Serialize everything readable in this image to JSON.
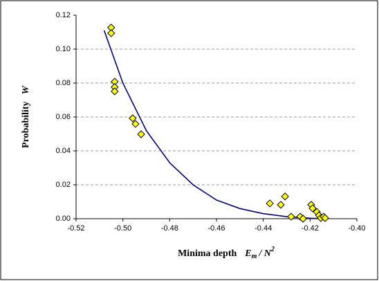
{
  "chart_data": {
    "type": "scatter",
    "ylabel": {
      "text": "Probability",
      "symbol": "W"
    },
    "xlabel": {
      "text": "Minima depth",
      "symbol": "E",
      "subscript": "m",
      "divider": "/ N",
      "superscript": "2"
    },
    "xlim": [
      -0.52,
      -0.4
    ],
    "xticks": [
      -0.52,
      {
        "value": -0.5,
        "label": "-0.50"
      },
      -0.48,
      -0.46,
      -0.44,
      -0.42,
      {
        "value": -0.4,
        "label": "-0.40"
      }
    ],
    "ylim": [
      0,
      0.12
    ],
    "yticks": [
      {
        "value": 0,
        "label": "0.00"
      },
      0.02,
      0.04,
      0.06,
      0.08,
      {
        "value": 0.1,
        "label": "0.10"
      },
      0.12
    ],
    "grid": true,
    "series": [
      {
        "mode": "markers",
        "color": "#ffff00",
        "x": [
          -0.505,
          -0.505,
          -0.5035,
          -0.5035,
          -0.5035,
          -0.4958,
          -0.4946,
          -0.4922,
          -0.4372,
          -0.4325,
          -0.4307,
          -0.4281,
          -0.4242,
          -0.423,
          -0.4195,
          -0.4189,
          -0.4171,
          -0.4162,
          -0.4154,
          -0.4142,
          -0.4136
        ],
        "values": [
          0.1127,
          0.1094,
          0.0808,
          0.0776,
          0.0751,
          0.0592,
          0.0559,
          0.0498,
          0.009,
          0.0082,
          0.0131,
          0.0012,
          0.0012,
          0.0,
          0.0082,
          0.0061,
          0.004,
          0.002,
          0.0004,
          0.0012,
          0.0004
        ]
      },
      {
        "mode": "line",
        "color": "#000080",
        "x": [
          -0.508,
          -0.5,
          -0.49,
          -0.48,
          -0.47,
          -0.46,
          -0.45,
          -0.44,
          -0.43,
          -0.42,
          -0.414
        ],
        "values": [
          0.111,
          0.08,
          0.052,
          0.033,
          0.02,
          0.011,
          0.006,
          0.003,
          0.0012,
          0.0003,
          0.0
        ]
      }
    ]
  }
}
